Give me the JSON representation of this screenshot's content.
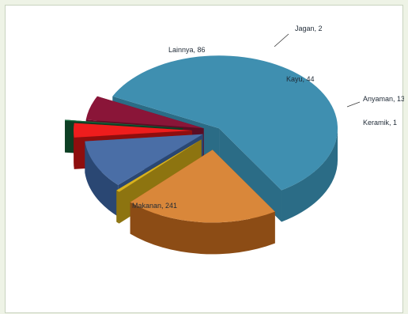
{
  "chart_data": {
    "type": "pie",
    "style": "3d-exploded",
    "title": "",
    "legend": "none",
    "slices": [
      {
        "label": "Makanan, 241",
        "name": "Makanan",
        "value": 241,
        "color": "#3f8fb0",
        "side": "#2b6c86"
      },
      {
        "label": "Lainnya, 86",
        "name": "Lainnya",
        "value": 86,
        "color": "#d9873a",
        "side": "#8c4c15"
      },
      {
        "label": "Jagan, 2",
        "name": "Jagan",
        "value": 2,
        "color": "#d8b21e",
        "side": "#8d7410"
      },
      {
        "label": "Kayu, 44",
        "name": "Kayu",
        "value": 44,
        "color": "#4a6ea6",
        "side": "#2a4773"
      },
      {
        "label": "Anyaman, 13",
        "name": "Anyaman",
        "value": 13,
        "color": "#ee1d1d",
        "side": "#8e0e0e"
      },
      {
        "label": "Keramik, 1",
        "name": "Keramik",
        "value": 1,
        "color": "#1d6f43",
        "side": "#0d3f24"
      },
      {
        "label": "",
        "name": "",
        "value": 22,
        "color": "#8a1538",
        "side": "#5b0d24"
      }
    ]
  }
}
